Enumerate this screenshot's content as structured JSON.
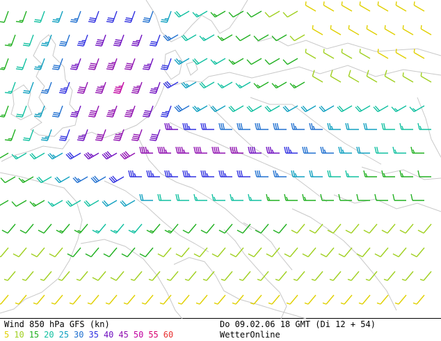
{
  "map": {
    "title": "Wind 850 hPa GFS (kn)",
    "valid_time": "Do 09.02.06 18 GMT (Di 12 + 54)",
    "brand": "WetterOnline",
    "legend": [
      {
        "label": "5",
        "color": "#e0d000"
      },
      {
        "label": "10",
        "color": "#a0d020"
      },
      {
        "label": "15",
        "color": "#20b020"
      },
      {
        "label": "20",
        "color": "#10c0a0"
      },
      {
        "label": "25",
        "color": "#10a0c0"
      },
      {
        "label": "30",
        "color": "#2070d0"
      },
      {
        "label": "35",
        "color": "#3030e0"
      },
      {
        "label": "40",
        "color": "#7010c0"
      },
      {
        "label": "45",
        "color": "#9010b0"
      },
      {
        "label": "50",
        "color": "#c000a0"
      },
      {
        "label": "55",
        "color": "#d80070"
      },
      {
        "label": "60",
        "color": "#e83030"
      }
    ],
    "coastline_color": "#c8c8c8"
  }
}
